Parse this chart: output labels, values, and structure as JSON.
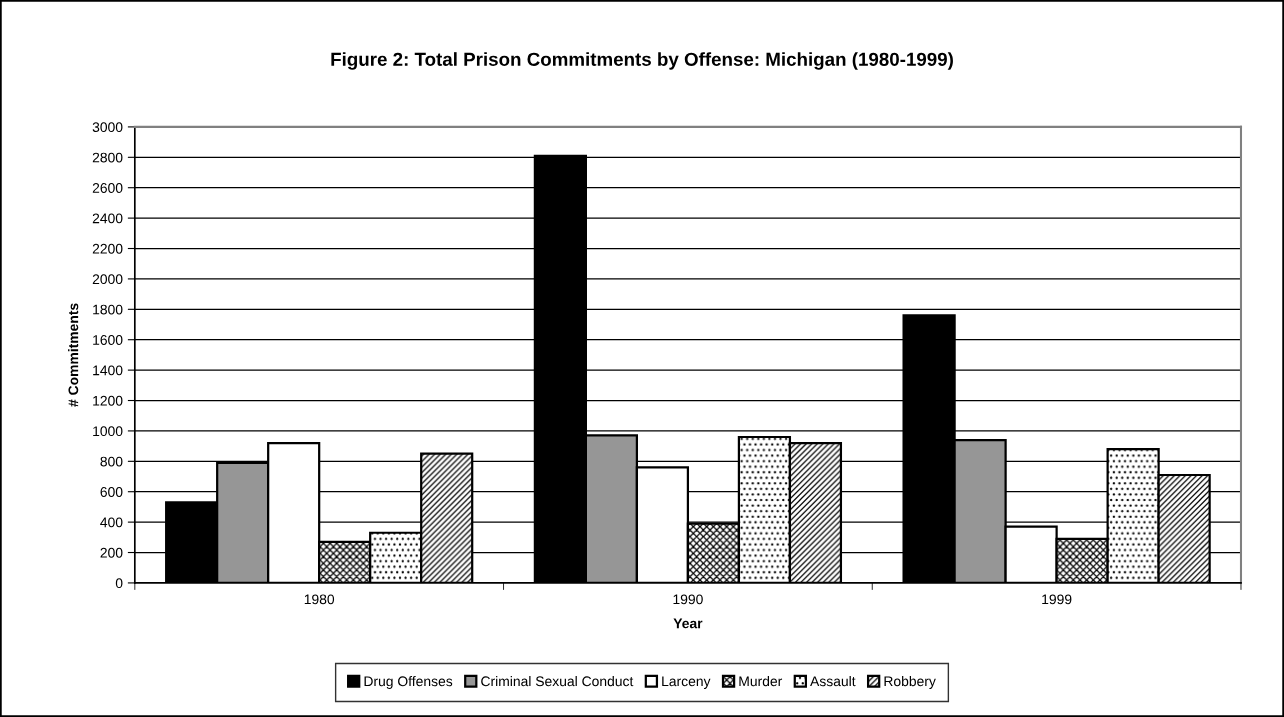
{
  "chart_data": {
    "type": "bar",
    "title": "Figure 2: Total Prison Commitments by Offense: Michigan (1980-1999)",
    "xlabel": "Year",
    "ylabel": "# Commitments",
    "categories": [
      "1980",
      "1990",
      "1999"
    ],
    "series": [
      {
        "name": "Drug Offenses",
        "color": "#000000",
        "values": [
          530,
          2810,
          1760
        ]
      },
      {
        "name": "Criminal Sexual Conduct",
        "color": "#969696",
        "values": [
          790,
          970,
          940
        ]
      },
      {
        "name": "Larceny",
        "color": "#ffffff",
        "values": [
          920,
          760,
          370
        ]
      },
      {
        "name": "Murder",
        "color": "#000000",
        "values": [
          270,
          390,
          290
        ]
      },
      {
        "name": "Assault",
        "color": "#000000",
        "values": [
          330,
          960,
          880
        ]
      },
      {
        "name": "Robbery",
        "color": "#000000",
        "values": [
          850,
          920,
          710
        ]
      }
    ],
    "ylim": [
      0,
      3000
    ],
    "yticks": [
      0,
      200,
      400,
      600,
      800,
      1000,
      1200,
      1400,
      1600,
      1800,
      2000,
      2200,
      2400,
      2600,
      2800,
      3000
    ],
    "grid": "y",
    "legend": "bottom"
  }
}
